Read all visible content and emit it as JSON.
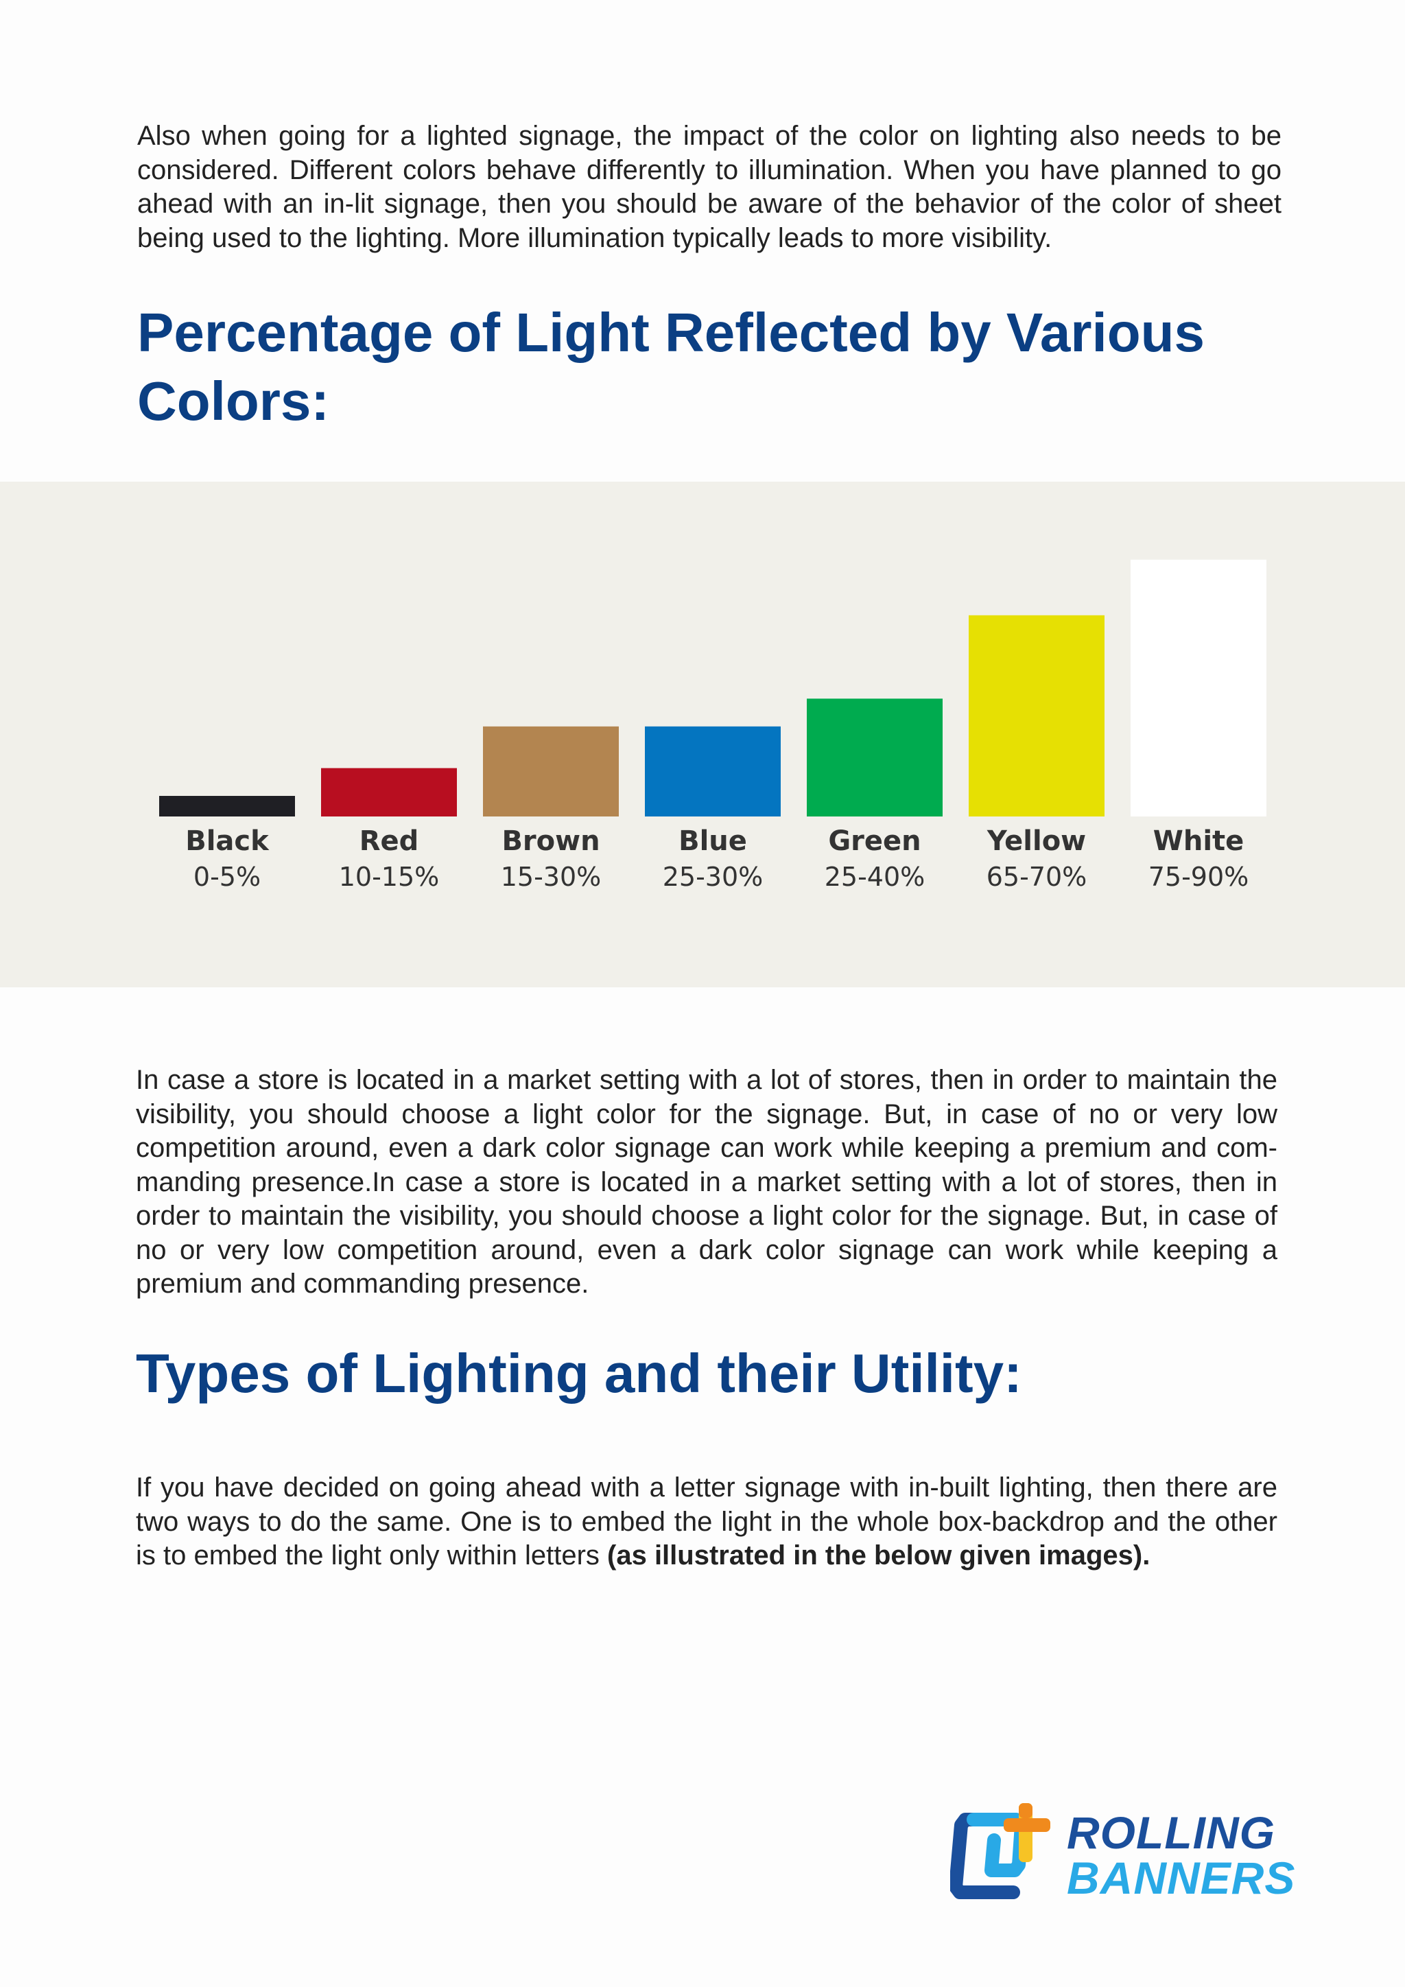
{
  "intro_paragraph": "Also when going for a lighted signage, the impact of the color on lighting also needs to be considered. Different colors behave differently to illumination. When you have planned to go ahead with an in-lit signage, then you should be aware of the behavior of the color of sheet being used to the lighting. More illumination typically leads to more visibility.",
  "heading_1": "Percentage of Light Reflected by Various Colors:",
  "chart_data": {
    "type": "bar",
    "title": "",
    "xlabel": "",
    "ylabel": "",
    "categories": [
      "Black",
      "Red",
      "Brown",
      "Blue",
      "Green",
      "Yellow",
      "White"
    ],
    "range_labels": [
      "0-5%",
      "10-15%",
      "15-30%",
      "25-30%",
      "25-40%",
      "65-70%",
      "75-90%"
    ],
    "ranges": [
      [
        0,
        5
      ],
      [
        10,
        15
      ],
      [
        15,
        30
      ],
      [
        25,
        30
      ],
      [
        25,
        40
      ],
      [
        65,
        70
      ],
      [
        75,
        90
      ]
    ],
    "colors": [
      "#1f1f24",
      "#b80e20",
      "#b38550",
      "#0475c0",
      "#00ab4f",
      "#e6e003",
      "#ffffff"
    ],
    "background": "#f1f0ea",
    "legend": "none",
    "grid": false
  },
  "paragraph_2": "In case a store is located in a market setting with a lot of stores, then in order to maintain the visibility, you should choose a light color for the signage. But, in case of no or very low competition around, even a dark color signage can work while keeping a premium and com-manding presence.In case a store is located in a market setting with a lot of stores, then in order to maintain the visibility, you should choose a light color for the signage. But, in case of no or very low competition around, even a dark color signage can work while keeping a premium and commanding presence.",
  "heading_2": "Types of Lighting and their Utility:",
  "paragraph_3": {
    "text": "If you have decided on going ahead with a letter signage with in-built lighting, then there are two ways to do the same. One is to embed the light in the whole box-backdrop and the other is to embed the light only within letters ",
    "emphasis": "(as illustrated in the below given images)."
  },
  "logo": {
    "line1": "ROLLING",
    "line2": "BANNERS",
    "colors": {
      "navy": "#1b4f9c",
      "light_blue": "#29a9e6",
      "yellow": "#f7c325",
      "orange": "#f08a1d"
    },
    "icon": "rolling-banners-logo-mark"
  }
}
